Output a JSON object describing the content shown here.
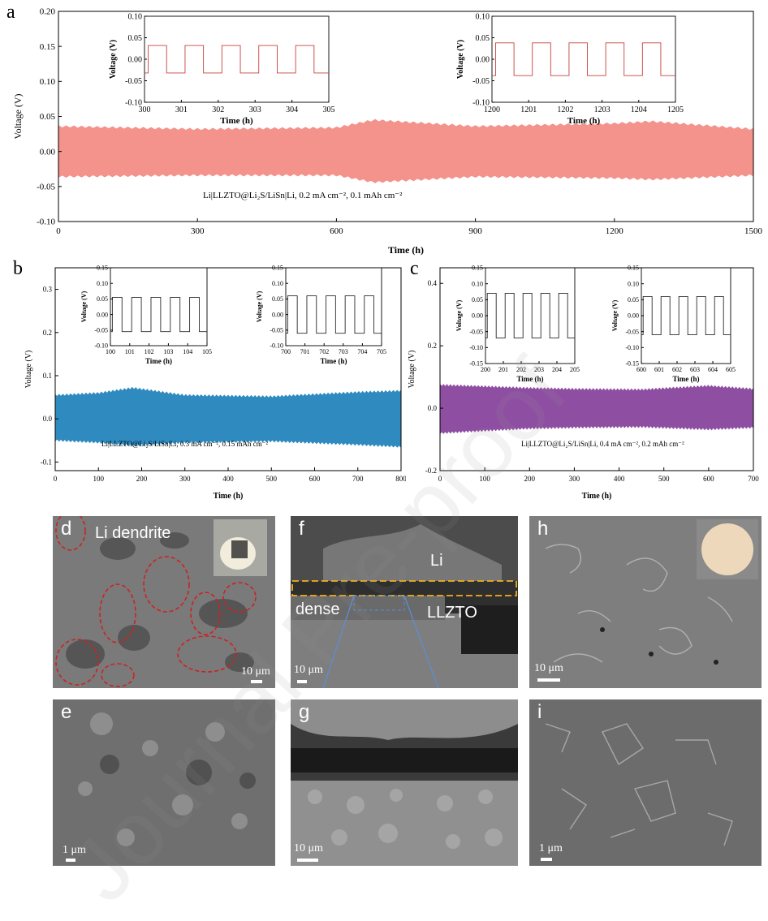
{
  "colors": {
    "a": "#f4928c",
    "b": "#2f8bbf",
    "c": "#8e4fa2",
    "inset_a": "#c8413c",
    "inset_bc": "#2a2a2a",
    "sem_dark": "#5a5a5a",
    "dendrite_circle": "#cc2222",
    "dense_band": "#f0b020",
    "guide_line": "#5b8fd6"
  },
  "chart_data": [
    {
      "id": "a",
      "letter": "a",
      "type": "area",
      "xlabel": "Time (h)",
      "ylabel": "Voltage (V)",
      "xlim": [
        0,
        1500
      ],
      "ylim": [
        -0.1,
        0.2
      ],
      "xticks": [
        "0",
        "300",
        "600",
        "900",
        "1200",
        "1500"
      ],
      "yticks": [
        "0.20",
        "0.15",
        "0.10",
        "0.05",
        "0.00",
        "-0.05",
        "-0.10"
      ],
      "envelope": {
        "x": [
          0,
          300,
          600,
          680,
          900,
          1200,
          1280,
          1500
        ],
        "upper": [
          0.036,
          0.032,
          0.034,
          0.045,
          0.036,
          0.04,
          0.043,
          0.032
        ],
        "lower": [
          -0.036,
          -0.034,
          -0.034,
          -0.044,
          -0.036,
          -0.038,
          -0.04,
          -0.034
        ]
      },
      "annotation": "Li|LLZTO@Li₂S/LiSn|Li, 0.2 mA cm⁻², 0.1 mAh cm⁻²",
      "insets": [
        {
          "xlim": [
            300,
            305
          ],
          "ylim": [
            -0.1,
            0.1
          ],
          "xticks": [
            "300",
            "301",
            "302",
            "303",
            "304",
            "305"
          ],
          "yticks": [
            "0.10",
            "0.05",
            "0.00",
            "-0.05",
            "-0.10"
          ],
          "xlabel": "Time (h)",
          "ylabel": "Voltage (V)",
          "amplitude": 0.032
        },
        {
          "xlim": [
            1200,
            1205
          ],
          "ylim": [
            -0.1,
            0.1
          ],
          "xticks": [
            "1200",
            "1201",
            "1202",
            "1203",
            "1204",
            "1205"
          ],
          "yticks": [
            "0.10",
            "0.05",
            "0.00",
            "-0.05",
            "-0.10"
          ],
          "xlabel": "Time (h)",
          "ylabel": "Voltage (V)",
          "amplitude": 0.038
        }
      ]
    },
    {
      "id": "b",
      "letter": "b",
      "type": "area",
      "xlabel": "Time (h)",
      "ylabel": "Voltage (V)",
      "xlim": [
        0,
        800
      ],
      "ylim": [
        -0.12,
        0.35
      ],
      "xticks": [
        "0",
        "100",
        "200",
        "300",
        "400",
        "500",
        "600",
        "700",
        "800"
      ],
      "yticks": [
        "0.3",
        "0.2",
        "0.1",
        "0.0",
        "-0.1"
      ],
      "envelope": {
        "x": [
          0,
          100,
          180,
          300,
          500,
          700,
          800
        ],
        "upper": [
          0.055,
          0.06,
          0.072,
          0.055,
          0.052,
          0.062,
          0.065
        ],
        "lower": [
          -0.05,
          -0.055,
          -0.062,
          -0.055,
          -0.052,
          -0.06,
          -0.065
        ]
      },
      "annotation": "Li|LLZTO@Li₂S/LiSn|Li, 0.3 mA cm⁻², 0.15 mAh cm⁻²",
      "insets": [
        {
          "xlim": [
            100,
            105
          ],
          "ylim": [
            -0.1,
            0.15
          ],
          "xticks": [
            "100",
            "101",
            "102",
            "103",
            "104",
            "105"
          ],
          "yticks": [
            "0.15",
            "0.10",
            "0.05",
            "0.00",
            "-0.05",
            "-0.10"
          ],
          "xlabel": "Time (h)",
          "ylabel": "Voltage (V)",
          "amplitude": 0.055
        },
        {
          "xlim": [
            700,
            705
          ],
          "ylim": [
            -0.1,
            0.15
          ],
          "xticks": [
            "700",
            "701",
            "702",
            "703",
            "704",
            "705"
          ],
          "yticks": [
            "0.15",
            "0.10",
            "0.05",
            "0.00",
            "-0.05",
            "-0.10"
          ],
          "xlabel": "Time (h)",
          "ylabel": "Voltage (V)",
          "amplitude": 0.06
        }
      ]
    },
    {
      "id": "c",
      "letter": "c",
      "type": "area",
      "xlabel": "Time (h)",
      "ylabel": "Voltage (V)",
      "xlim": [
        0,
        700
      ],
      "ylim": [
        -0.2,
        0.45
      ],
      "xticks": [
        "0",
        "100",
        "200",
        "300",
        "400",
        "500",
        "600",
        "700"
      ],
      "yticks": [
        "0.4",
        "0.2",
        "0.0",
        "-0.2"
      ],
      "envelope": {
        "x": [
          0,
          100,
          200,
          300,
          450,
          600,
          700
        ],
        "upper": [
          0.075,
          0.07,
          0.065,
          0.062,
          0.06,
          0.072,
          0.062
        ],
        "lower": [
          -0.08,
          -0.072,
          -0.065,
          -0.062,
          -0.06,
          -0.068,
          -0.062
        ]
      },
      "annotation": "Li|LLZTO@Li₂S/LiSn|Li, 0.4 mA cm⁻², 0.2 mAh cm⁻²",
      "insets": [
        {
          "xlim": [
            200,
            205
          ],
          "ylim": [
            -0.15,
            0.15
          ],
          "xticks": [
            "200",
            "201",
            "202",
            "203",
            "204",
            "205"
          ],
          "yticks": [
            "0.15",
            "0.10",
            "0.05",
            "0.00",
            "-0.05",
            "-0.10",
            "-0.15"
          ],
          "xlabel": "Time (h)",
          "ylabel": "Voltage (V)",
          "amplitude": 0.07
        },
        {
          "xlim": [
            600,
            605
          ],
          "ylim": [
            -0.15,
            0.15
          ],
          "xticks": [
            "600",
            "601",
            "602",
            "603",
            "604",
            "605"
          ],
          "yticks": [
            "0.15",
            "0.10",
            "0.05",
            "0.00",
            "-0.05",
            "-0.10",
            "-0.15"
          ],
          "xlabel": "Time (h)",
          "ylabel": "Voltage (V)",
          "amplitude": 0.06
        }
      ]
    }
  ],
  "sem_panels": [
    {
      "letter": "d",
      "label": "Li dendrite",
      "scale": "10 μm"
    },
    {
      "letter": "e",
      "label": "",
      "scale": "1 μm"
    },
    {
      "letter": "f",
      "label_li": "Li",
      "label_dense": "dense",
      "label_llzto": "LLZTO",
      "scale": "10 μm"
    },
    {
      "letter": "g",
      "label": "",
      "scale": "10 μm"
    },
    {
      "letter": "h",
      "label": "",
      "scale": "10 μm"
    },
    {
      "letter": "i",
      "label": "",
      "scale": "1 μm"
    }
  ],
  "watermark": "Journal Pre-proof"
}
